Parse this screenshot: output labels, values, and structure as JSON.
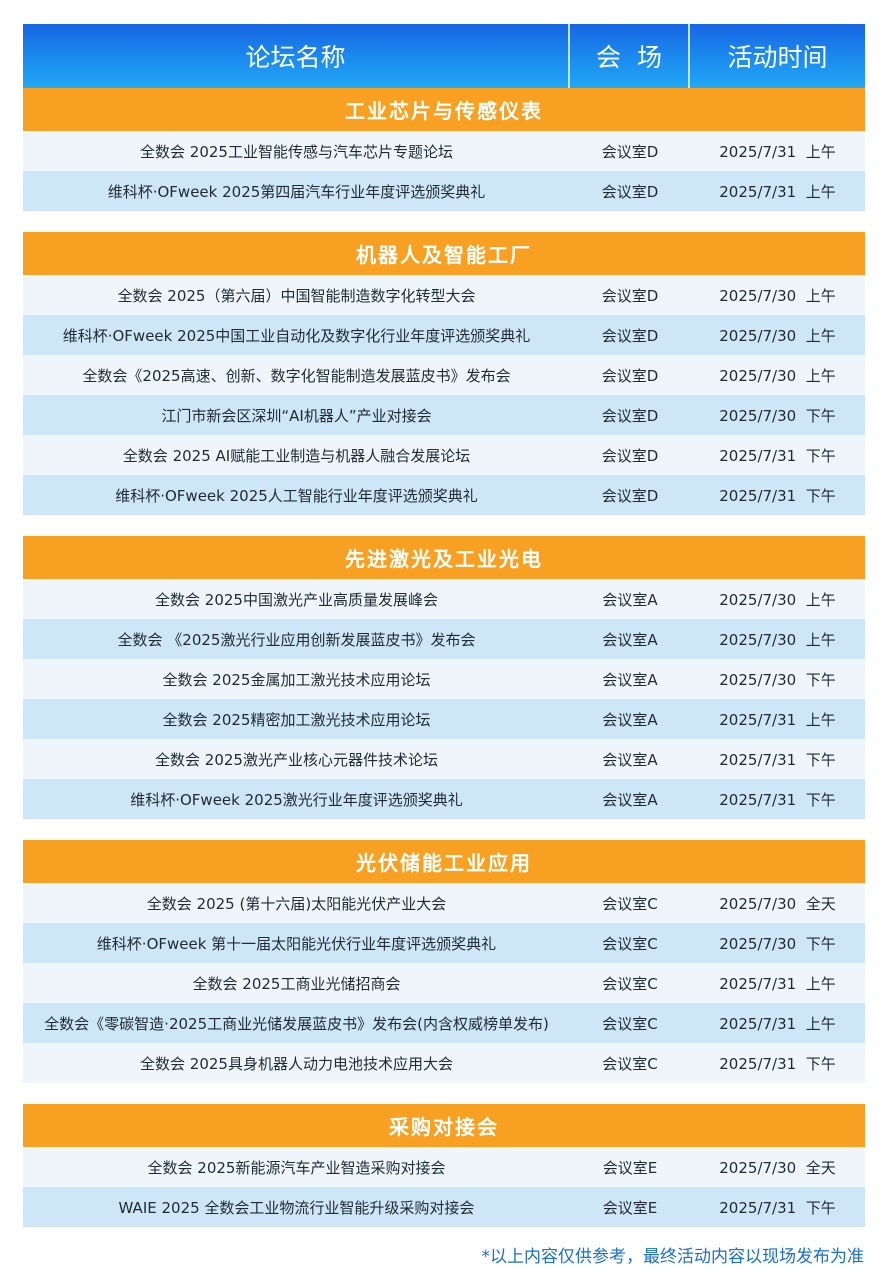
{
  "header": {
    "name": "论坛名称",
    "venue": "会  场",
    "time": "活动时间"
  },
  "sections": [
    {
      "title": "工业芯片与传感仪表",
      "rows": [
        {
          "name": "全数会 2025工业智能传感与汽车芯片专题论坛",
          "venue": "会议室D",
          "time": "2025/7/31  上午"
        },
        {
          "name": "维科杯·OFweek 2025第四届汽车行业年度评选颁奖典礼",
          "venue": "会议室D",
          "time": "2025/7/31  上午"
        }
      ]
    },
    {
      "title": "机器人及智能工厂",
      "rows": [
        {
          "name": "全数会 2025（第六届）中国智能制造数字化转型大会",
          "venue": "会议室D",
          "time": "2025/7/30  上午"
        },
        {
          "name": "维科杯·OFweek 2025中国工业自动化及数字化行业年度评选颁奖典礼",
          "venue": "会议室D",
          "time": "2025/7/30  上午"
        },
        {
          "name": "全数会《2025高速、创新、数字化智能制造发展蓝皮书》发布会",
          "venue": "会议室D",
          "time": "2025/7/30  上午"
        },
        {
          "name": "江门市新会区深圳“AI机器人”产业对接会",
          "venue": "会议室D",
          "time": "2025/7/30  下午"
        },
        {
          "name": "全数会 2025 AI赋能工业制造与机器人融合发展论坛",
          "venue": "会议室D",
          "time": "2025/7/31  下午"
        },
        {
          "name": "维科杯·OFweek 2025人工智能行业年度评选颁奖典礼",
          "venue": "会议室D",
          "time": "2025/7/31  下午"
        }
      ]
    },
    {
      "title": "先进激光及工业光电",
      "rows": [
        {
          "name": "全数会 2025中国激光产业高质量发展峰会",
          "venue": "会议室A",
          "time": "2025/7/30  上午"
        },
        {
          "name": "全数会 《2025激光行业应用创新发展蓝皮书》发布会",
          "venue": "会议室A",
          "time": "2025/7/30  上午"
        },
        {
          "name": "全数会 2025金属加工激光技术应用论坛",
          "venue": "会议室A",
          "time": "2025/7/30  下午"
        },
        {
          "name": "全数会 2025精密加工激光技术应用论坛",
          "venue": "会议室A",
          "time": "2025/7/31  上午"
        },
        {
          "name": "全数会 2025激光产业核心元器件技术论坛",
          "venue": "会议室A",
          "time": "2025/7/31  下午"
        },
        {
          "name": "维科杯·OFweek 2025激光行业年度评选颁奖典礼",
          "venue": "会议室A",
          "time": "2025/7/31  下午"
        }
      ]
    },
    {
      "title": "光伏储能工业应用",
      "rows": [
        {
          "name": "全数会 2025 (第十六届)太阳能光伏产业大会",
          "venue": "会议室C",
          "time": "2025/7/30  全天"
        },
        {
          "name": "维科杯·OFweek 第十一届太阳能光伏行业年度评选颁奖典礼",
          "venue": "会议室C",
          "time": "2025/7/30  下午"
        },
        {
          "name": "全数会 2025工商业光储招商会",
          "venue": "会议室C",
          "time": "2025/7/31  上午"
        },
        {
          "name": "全数会《零碳智造·2025工商业光储发展蓝皮书》发布会(内含权威榜单发布)",
          "venue": "会议室C",
          "time": "2025/7/31  上午"
        },
        {
          "name": "全数会  2025具身机器人动力电池技术应用大会",
          "venue": "会议室C",
          "time": "2025/7/31  下午"
        }
      ]
    },
    {
      "title": "采购对接会",
      "rows": [
        {
          "name": "全数会 2025新能源汽车产业智造采购对接会",
          "venue": "会议室E",
          "time": "2025/7/30  全天"
        },
        {
          "name": "WAIE 2025 全数会工业物流行业智能升级采购对接会",
          "venue": "会议室E",
          "time": "2025/7/31  下午"
        }
      ]
    }
  ],
  "footer_note": "*以上内容仅供参考，最终活动内容以现场发布为准",
  "colors": {
    "header_blue": "#1c8ff0",
    "section_orange": "#f7a021",
    "row_light": "#eef6fc",
    "row_blue": "#cde6f8",
    "note_blue": "#1a6fd0"
  }
}
